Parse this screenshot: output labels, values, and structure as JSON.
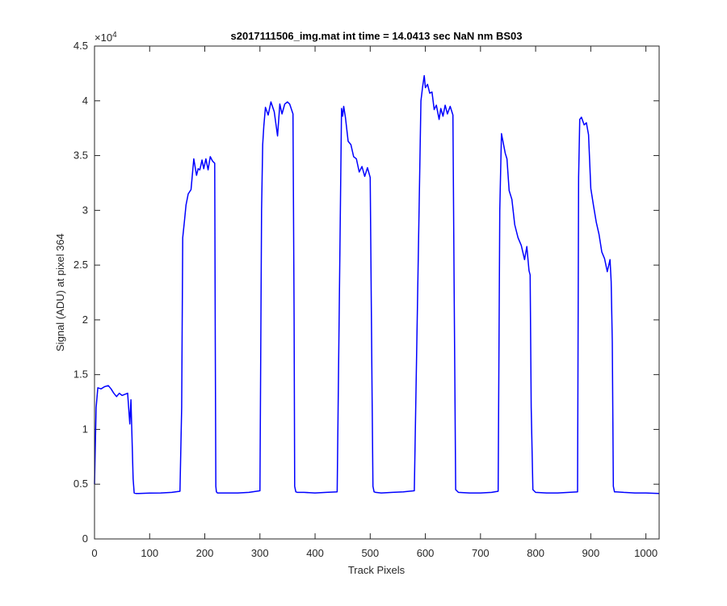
{
  "chart_data": {
    "type": "line",
    "title": "s2017111506_img.mat int time = 14.0413 sec  NaN nm BS03",
    "xlabel": "Track Pixels",
    "ylabel": "Signal (ADU) at pixel 364",
    "y_exponent_label": "×10",
    "y_exponent_power": "4",
    "xlim": [
      0,
      1024
    ],
    "ylim": [
      0,
      45000
    ],
    "x_ticks": [
      0,
      100,
      200,
      300,
      400,
      500,
      600,
      700,
      800,
      900,
      1000
    ],
    "x_tick_labels": [
      "0",
      "100",
      "200",
      "300",
      "400",
      "500",
      "600",
      "700",
      "800",
      "900",
      "1000"
    ],
    "y_ticks": [
      0,
      5000,
      10000,
      15000,
      20000,
      25000,
      30000,
      35000,
      40000,
      45000
    ],
    "y_tick_labels": [
      "0",
      "0.5",
      "1",
      "1.5",
      "2",
      "2.5",
      "3",
      "3.5",
      "4",
      "4.5"
    ],
    "grid": false,
    "line_color": "#0000ff",
    "series": [
      {
        "x": [
          0,
          3,
          6,
          12,
          18,
          25,
          30,
          35,
          40,
          45,
          50,
          55,
          60,
          64,
          66,
          68,
          70,
          72,
          75,
          80,
          100,
          120,
          140,
          155,
          158,
          160,
          163,
          166,
          170,
          175,
          180,
          185,
          188,
          191,
          195,
          198,
          202,
          206,
          210,
          214,
          218,
          219,
          220,
          221,
          223,
          226,
          240,
          260,
          280,
          300,
          303,
          305,
          307,
          310,
          315,
          320,
          326,
          332,
          336,
          340,
          345,
          350,
          354,
          360,
          362,
          363,
          365,
          368,
          380,
          400,
          420,
          440,
          448,
          450,
          452,
          455,
          460,
          465,
          470,
          475,
          480,
          485,
          490,
          495,
          500,
          503,
          505,
          507,
          510,
          520,
          540,
          560,
          580,
          592,
          595,
          598,
          600,
          604,
          608,
          612,
          616,
          620,
          625,
          628,
          632,
          636,
          640,
          645,
          650,
          652,
          655,
          660,
          680,
          700,
          720,
          732,
          735,
          738,
          740,
          745,
          748,
          752,
          757,
          762,
          768,
          774,
          780,
          784,
          788,
          790,
          792,
          795,
          800,
          820,
          840,
          860,
          876,
          878,
          880,
          883,
          888,
          892,
          896,
          900,
          905,
          910,
          915,
          920,
          925,
          930,
          935,
          937,
          939,
          941,
          943,
          946,
          960,
          980,
          1000,
          1024
        ],
        "y": [
          5000,
          12000,
          13800,
          13700,
          13900,
          14000,
          13700,
          13300,
          13000,
          13300,
          13100,
          13200,
          13300,
          10500,
          12700,
          9300,
          5500,
          4200,
          4150,
          4150,
          4180,
          4200,
          4250,
          4350,
          12000,
          27500,
          29000,
          30500,
          31500,
          31900,
          34700,
          33200,
          33800,
          33700,
          34600,
          33800,
          34700,
          33700,
          34900,
          34500,
          34300,
          18000,
          4800,
          4300,
          4200,
          4200,
          4200,
          4200,
          4250,
          4400,
          30000,
          36000,
          37700,
          39400,
          38700,
          39900,
          39000,
          36800,
          39700,
          38800,
          39700,
          39900,
          39700,
          38800,
          20000,
          4800,
          4300,
          4250,
          4250,
          4200,
          4250,
          4300,
          39300,
          38600,
          39500,
          38500,
          36300,
          36000,
          34900,
          34700,
          33500,
          34000,
          33100,
          33900,
          33000,
          15000,
          4800,
          4300,
          4250,
          4200,
          4250,
          4300,
          4400,
          40000,
          41300,
          42300,
          41200,
          41500,
          40700,
          40800,
          39200,
          39600,
          38300,
          39300,
          38600,
          39600,
          38800,
          39500,
          38700,
          24000,
          4500,
          4250,
          4200,
          4200,
          4250,
          4350,
          30000,
          37000,
          36500,
          35200,
          34700,
          31800,
          31000,
          28700,
          27500,
          26800,
          25500,
          26700,
          24500,
          24100,
          12000,
          4500,
          4250,
          4200,
          4200,
          4250,
          4300,
          33000,
          38300,
          38500,
          37800,
          38000,
          36900,
          32000,
          30400,
          28900,
          27800,
          26200,
          25600,
          24400,
          25500,
          23500,
          18000,
          4800,
          4300,
          4300,
          4250,
          4200,
          4200,
          4150
        ]
      }
    ]
  }
}
